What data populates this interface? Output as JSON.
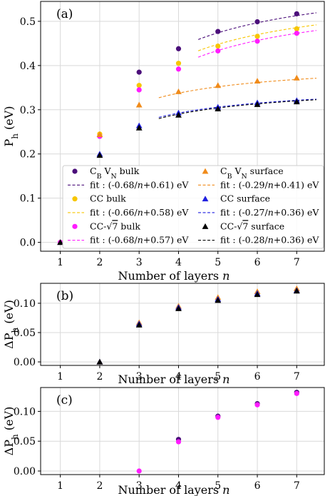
{
  "chart_data": [
    {
      "type": "scatter",
      "panel_label": "(a)",
      "xlabel": "Number of layers n",
      "ylabel": "P_h (eV)",
      "xlim": [
        0.5,
        7.7
      ],
      "ylim": [
        -0.02,
        0.545
      ],
      "xticks": [
        "1",
        "2",
        "3",
        "4",
        "5",
        "6",
        "7"
      ],
      "yticks": [
        "0.0",
        "0.1",
        "0.2",
        "0.3",
        "0.4",
        "0.5"
      ],
      "grid": true,
      "legend_placement": "lower-right",
      "colors": {
        "cbvn": "#4b0f7a",
        "cc": "#f7c600",
        "ccr7": "#ff1cff",
        "cbvn_s": "#f08b1a",
        "cc_s": "#1f1fe0",
        "ccr7_s": "#000000"
      },
      "series": [
        {
          "key": "cbvn",
          "name": "C_B V_N bulk",
          "marker": "circle",
          "x": [
            1,
            2,
            3,
            4,
            5,
            6,
            7
          ],
          "y": [
            0.0,
            0.24,
            0.385,
            0.438,
            0.477,
            0.499,
            0.517
          ]
        },
        {
          "key": "cc",
          "name": "CC bulk",
          "marker": "circle",
          "x": [
            1,
            2,
            3,
            4,
            5,
            6,
            7
          ],
          "y": [
            0.0,
            0.245,
            0.355,
            0.405,
            0.444,
            0.466,
            0.483
          ]
        },
        {
          "key": "ccr7",
          "name": "CC-√7 bulk",
          "marker": "circle",
          "x": [
            1,
            2,
            3,
            4,
            5,
            6,
            7
          ],
          "y": [
            0.0,
            0.24,
            0.345,
            0.392,
            0.433,
            0.455,
            0.473
          ]
        },
        {
          "key": "cbvn_s",
          "name": "C_B V_N surface",
          "marker": "triangle",
          "x": [
            1,
            2,
            3,
            4,
            5,
            6,
            7
          ],
          "y": [
            0.0,
            0.244,
            0.311,
            0.341,
            0.355,
            0.365,
            0.372
          ]
        },
        {
          "key": "cc_s",
          "name": "CC surface",
          "marker": "triangle",
          "x": [
            1,
            2,
            3,
            4,
            5,
            6,
            7
          ],
          "y": [
            0.0,
            0.2,
            0.264,
            0.293,
            0.306,
            0.316,
            0.321
          ]
        },
        {
          "key": "ccr7_s",
          "name": "CC-√7 surface",
          "marker": "triangle",
          "x": [
            1,
            2,
            3,
            4,
            5,
            6,
            7
          ],
          "y": [
            0.0,
            0.197,
            0.259,
            0.288,
            0.302,
            0.312,
            0.318
          ]
        }
      ],
      "fits": [
        {
          "key": "cbvn",
          "name": "fit : (-0.68/n+0.61) eV",
          "a": -0.68,
          "b": 0.61,
          "xrange": [
            4.5,
            7.5
          ]
        },
        {
          "key": "cc",
          "name": "fit : (-0.66/n+0.58) eV",
          "a": -0.66,
          "b": 0.58,
          "xrange": [
            4.5,
            7.5
          ]
        },
        {
          "key": "ccr7",
          "name": "fit : (-0.68/n+0.57) eV",
          "a": -0.68,
          "b": 0.57,
          "xrange": [
            4.5,
            7.5
          ]
        },
        {
          "key": "cbvn_s",
          "name": "fit : (-0.29/n+0.41) eV",
          "a": -0.29,
          "b": 0.41,
          "xrange": [
            3.5,
            7.5
          ]
        },
        {
          "key": "cc_s",
          "name": "fit : (-0.27/n+0.36) eV",
          "a": -0.27,
          "b": 0.36,
          "xrange": [
            3.5,
            7.5
          ]
        },
        {
          "key": "ccr7_s",
          "name": "fit : (-0.28/n+0.36) eV",
          "a": -0.28,
          "b": 0.36,
          "xrange": [
            3.5,
            7.5
          ]
        }
      ]
    },
    {
      "type": "scatter",
      "panel_label": "(b)",
      "xlabel": "Number of layers n",
      "ylabel": "ΔP_h (eV)",
      "xlim": [
        0.5,
        7.7
      ],
      "ylim": [
        -0.006,
        0.134
      ],
      "xticks": [
        "1",
        "2",
        "3",
        "4",
        "5",
        "6",
        "7"
      ],
      "yticks": [
        "0.00",
        "0.05",
        "0.10"
      ],
      "grid": true,
      "series": [
        {
          "key": "cbvn_s",
          "marker": "triangle",
          "x": [
            2,
            3,
            4,
            5,
            6,
            7
          ],
          "y": [
            0.0,
            0.067,
            0.095,
            0.11,
            0.12,
            0.125
          ]
        },
        {
          "key": "cc_s",
          "marker": "triangle",
          "x": [
            2,
            3,
            4,
            5,
            6,
            7
          ],
          "y": [
            0.0,
            0.065,
            0.093,
            0.107,
            0.117,
            0.122
          ]
        },
        {
          "key": "ccr7_s",
          "marker": "triangle",
          "x": [
            2,
            3,
            4,
            5,
            6,
            7
          ],
          "y": [
            0.0,
            0.063,
            0.091,
            0.105,
            0.115,
            0.121
          ]
        }
      ]
    },
    {
      "type": "scatter",
      "panel_label": "(c)",
      "xlabel": "Number of layers n",
      "ylabel": "ΔP_h (eV)",
      "xlim": [
        0.5,
        7.7
      ],
      "ylim": [
        -0.006,
        0.14
      ],
      "xticks": [
        "1",
        "2",
        "3",
        "4",
        "5",
        "6",
        "7"
      ],
      "yticks": [
        "0.00",
        "0.05",
        "0.10"
      ],
      "grid": true,
      "series": [
        {
          "key": "cbvn",
          "marker": "circle",
          "x": [
            4,
            5,
            6,
            7
          ],
          "y": [
            0.053,
            0.092,
            0.113,
            0.132
          ]
        },
        {
          "key": "ccr7",
          "marker": "circle",
          "x": [
            3,
            4,
            5,
            6,
            7
          ],
          "y": [
            0.0,
            0.049,
            0.09,
            0.111,
            0.13
          ]
        }
      ]
    }
  ]
}
